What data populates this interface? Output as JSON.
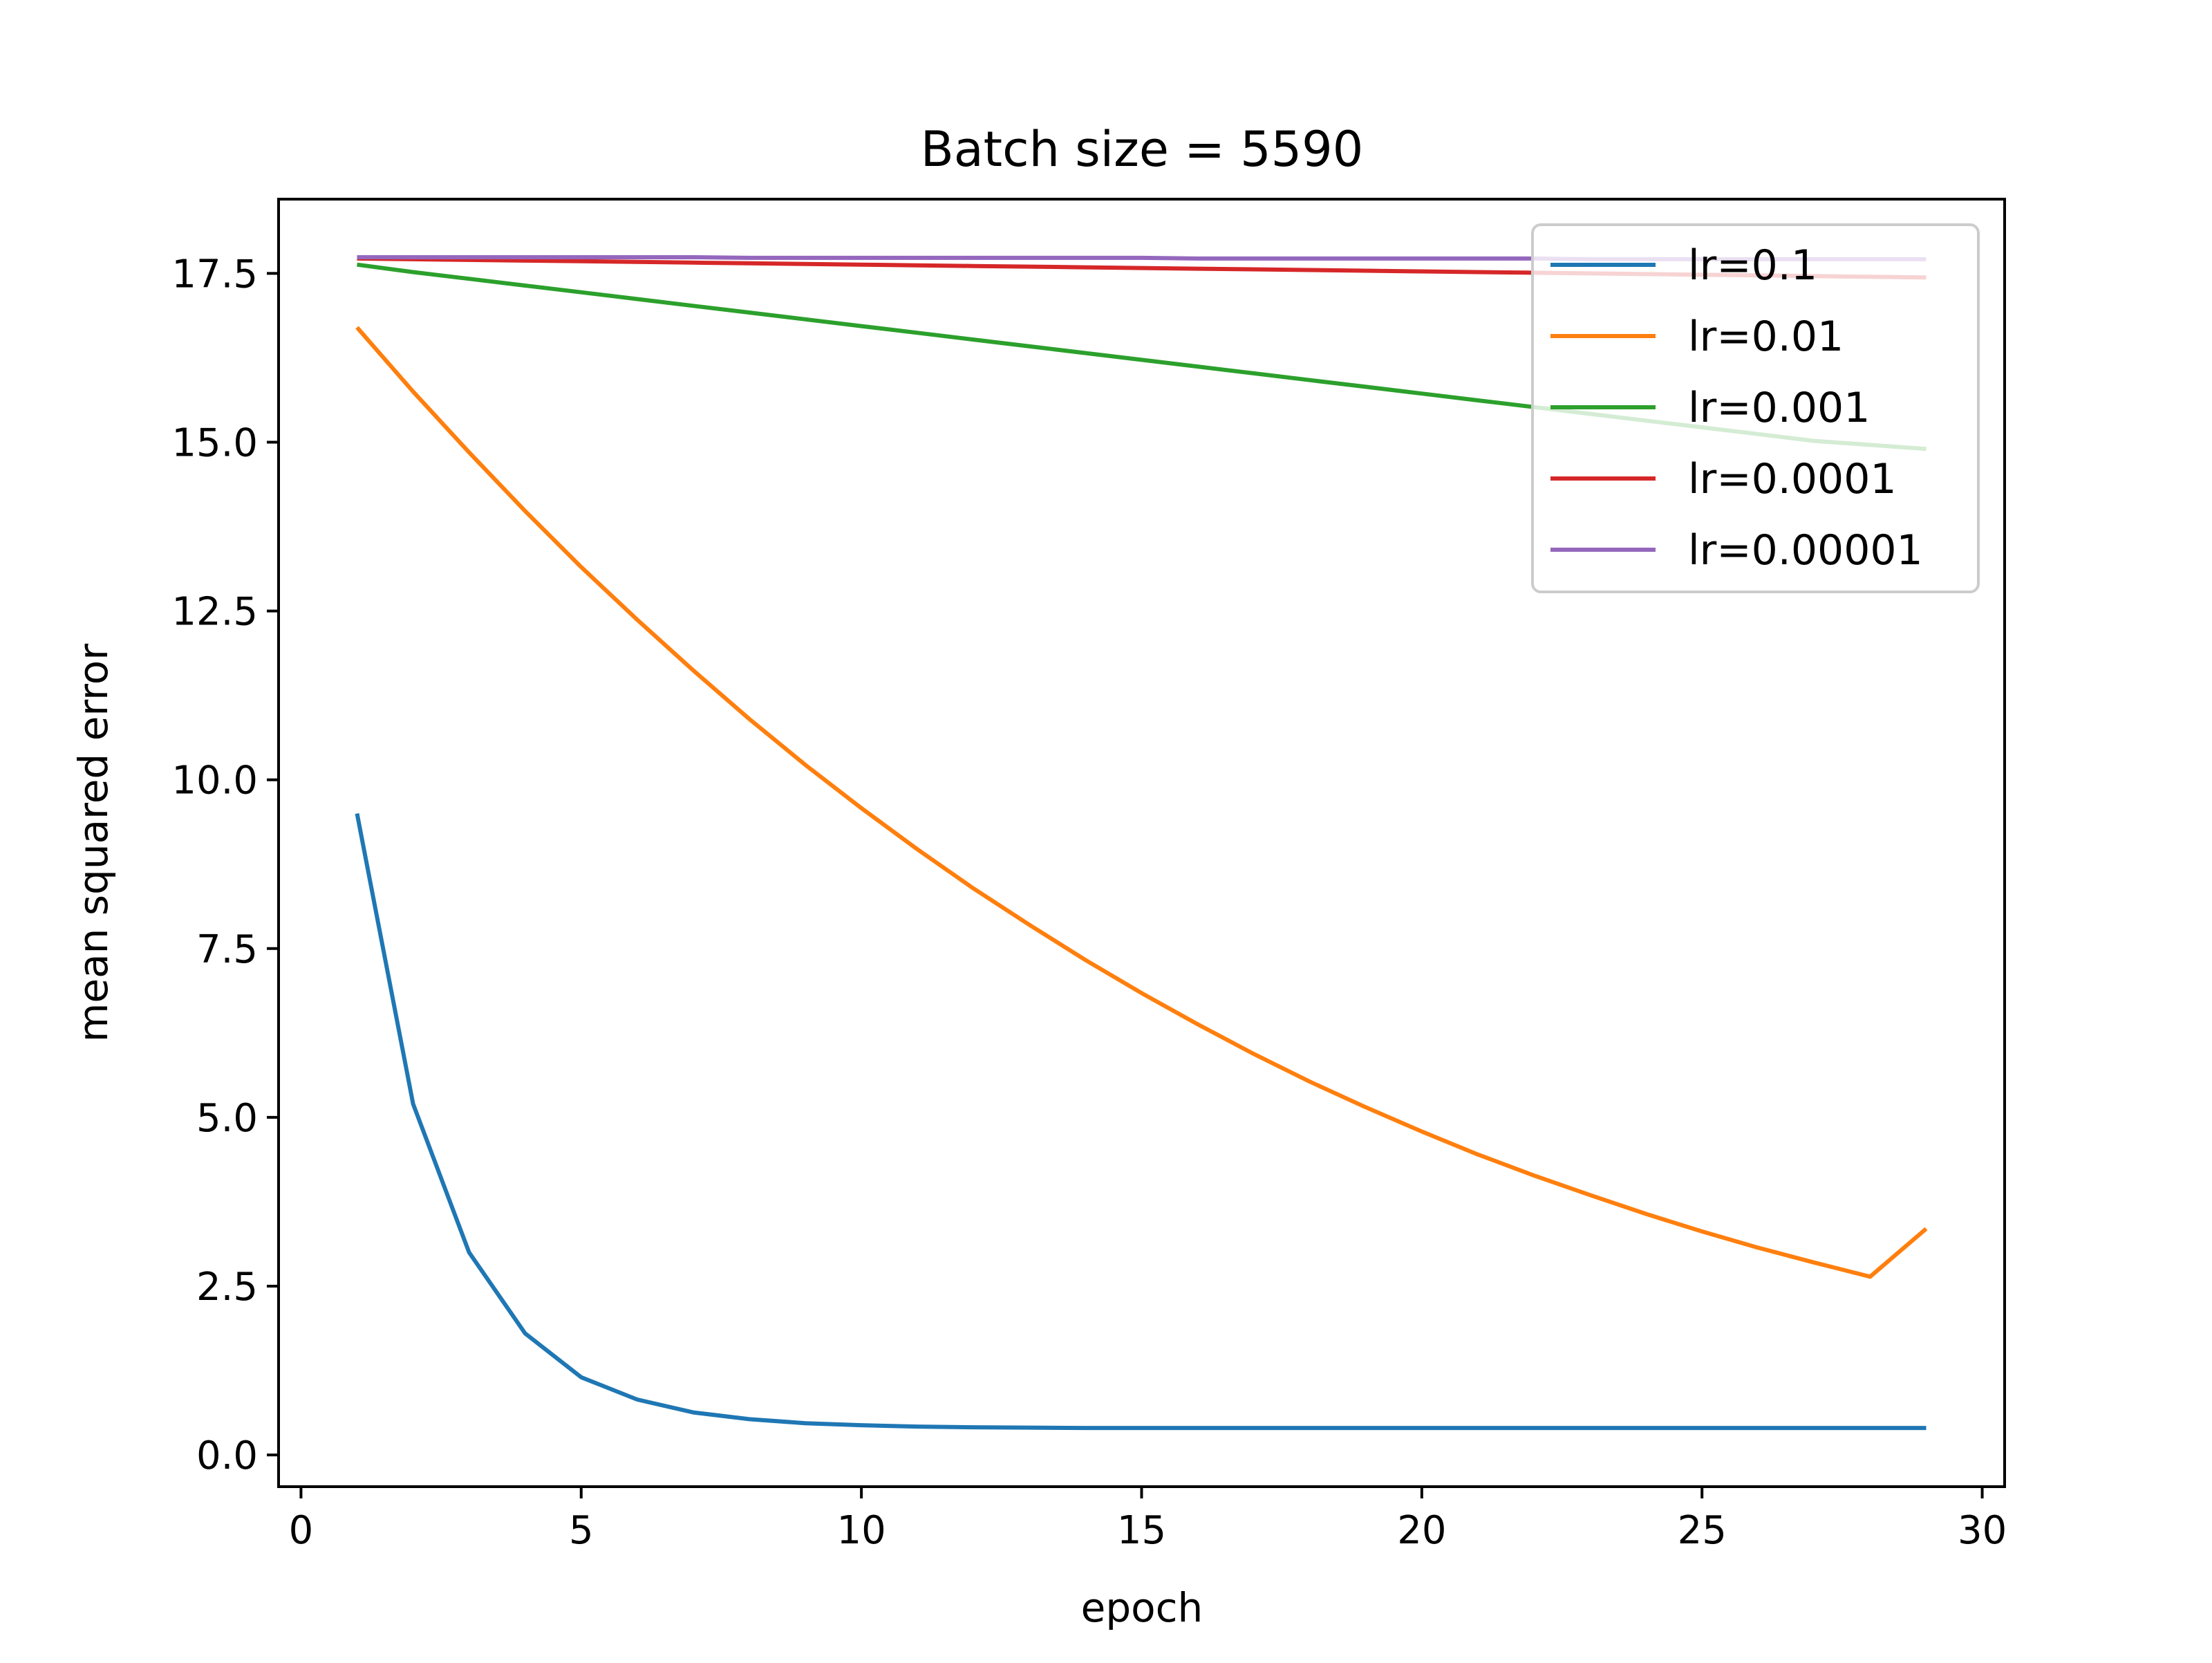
{
  "chart_data": {
    "type": "line",
    "title": "Batch size = 5590",
    "xlabel": "epoch",
    "ylabel": "mean squared error",
    "xlim": [
      -0.4,
      30.4
    ],
    "ylim": [
      -0.47,
      18.6
    ],
    "grid": false,
    "legend_position": "top-right",
    "x_ticks": [
      0,
      5,
      10,
      15,
      20,
      25,
      30
    ],
    "x_tick_labels": [
      "0",
      "5",
      "10",
      "15",
      "20",
      "25",
      "30"
    ],
    "y_ticks": [
      0,
      2.5,
      5,
      7.5,
      10,
      12.5,
      15,
      17.5
    ],
    "y_tick_labels": [
      "0.0",
      "2.5",
      "5.0",
      "7.5",
      "10.0",
      "12.5",
      "15.0",
      "17.5"
    ],
    "x": [
      1,
      2,
      3,
      4,
      5,
      6,
      7,
      8,
      9,
      10,
      11,
      12,
      13,
      14,
      15,
      16,
      17,
      18,
      19,
      20,
      21,
      22,
      23,
      24,
      25,
      26,
      27,
      28,
      29
    ],
    "series": [
      {
        "name": "lr=0.1",
        "color": "#1f77b4",
        "values": [
          9.5,
          5.2,
          3.0,
          1.8,
          1.15,
          0.82,
          0.63,
          0.53,
          0.47,
          0.44,
          0.42,
          0.41,
          0.405,
          0.4,
          0.4,
          0.4,
          0.4,
          0.4,
          0.4,
          0.4,
          0.4,
          0.4,
          0.4,
          0.4,
          0.4,
          0.4,
          0.4,
          0.4,
          0.4
        ]
      },
      {
        "name": "lr=0.01",
        "color": "#ff7f0e",
        "values": [
          16.7,
          15.75,
          14.85,
          13.98,
          13.15,
          12.37,
          11.62,
          10.9,
          10.22,
          9.58,
          8.97,
          8.39,
          7.85,
          7.33,
          6.84,
          6.38,
          5.94,
          5.53,
          5.15,
          4.79,
          4.45,
          4.14,
          3.85,
          3.57,
          3.31,
          3.07,
          2.85,
          2.64,
          3.35
        ]
      },
      {
        "name": "lr=0.001",
        "color": "#2ca02c",
        "values": [
          17.63,
          17.52,
          17.42,
          17.32,
          17.22,
          17.12,
          17.02,
          16.92,
          16.82,
          16.72,
          16.62,
          16.52,
          16.42,
          16.32,
          16.22,
          16.12,
          16.02,
          15.92,
          15.82,
          15.72,
          15.62,
          15.52,
          15.42,
          15.32,
          15.22,
          15.12,
          15.02,
          14.96,
          14.9
        ]
      },
      {
        "name": "lr=0.0001",
        "color": "#d62728",
        "values": [
          17.72,
          17.71,
          17.7,
          17.69,
          17.68,
          17.67,
          17.66,
          17.65,
          17.64,
          17.63,
          17.62,
          17.61,
          17.6,
          17.59,
          17.58,
          17.57,
          17.56,
          17.55,
          17.54,
          17.53,
          17.52,
          17.51,
          17.5,
          17.49,
          17.48,
          17.47,
          17.46,
          17.45,
          17.44
        ]
      },
      {
        "name": "lr=0.00001",
        "color": "#9467bd",
        "values": [
          17.74,
          17.74,
          17.74,
          17.74,
          17.74,
          17.74,
          17.74,
          17.73,
          17.73,
          17.73,
          17.73,
          17.73,
          17.73,
          17.73,
          17.73,
          17.72,
          17.72,
          17.72,
          17.72,
          17.72,
          17.72,
          17.72,
          17.71,
          17.71,
          17.71,
          17.71,
          17.71,
          17.71,
          17.71
        ]
      }
    ]
  }
}
